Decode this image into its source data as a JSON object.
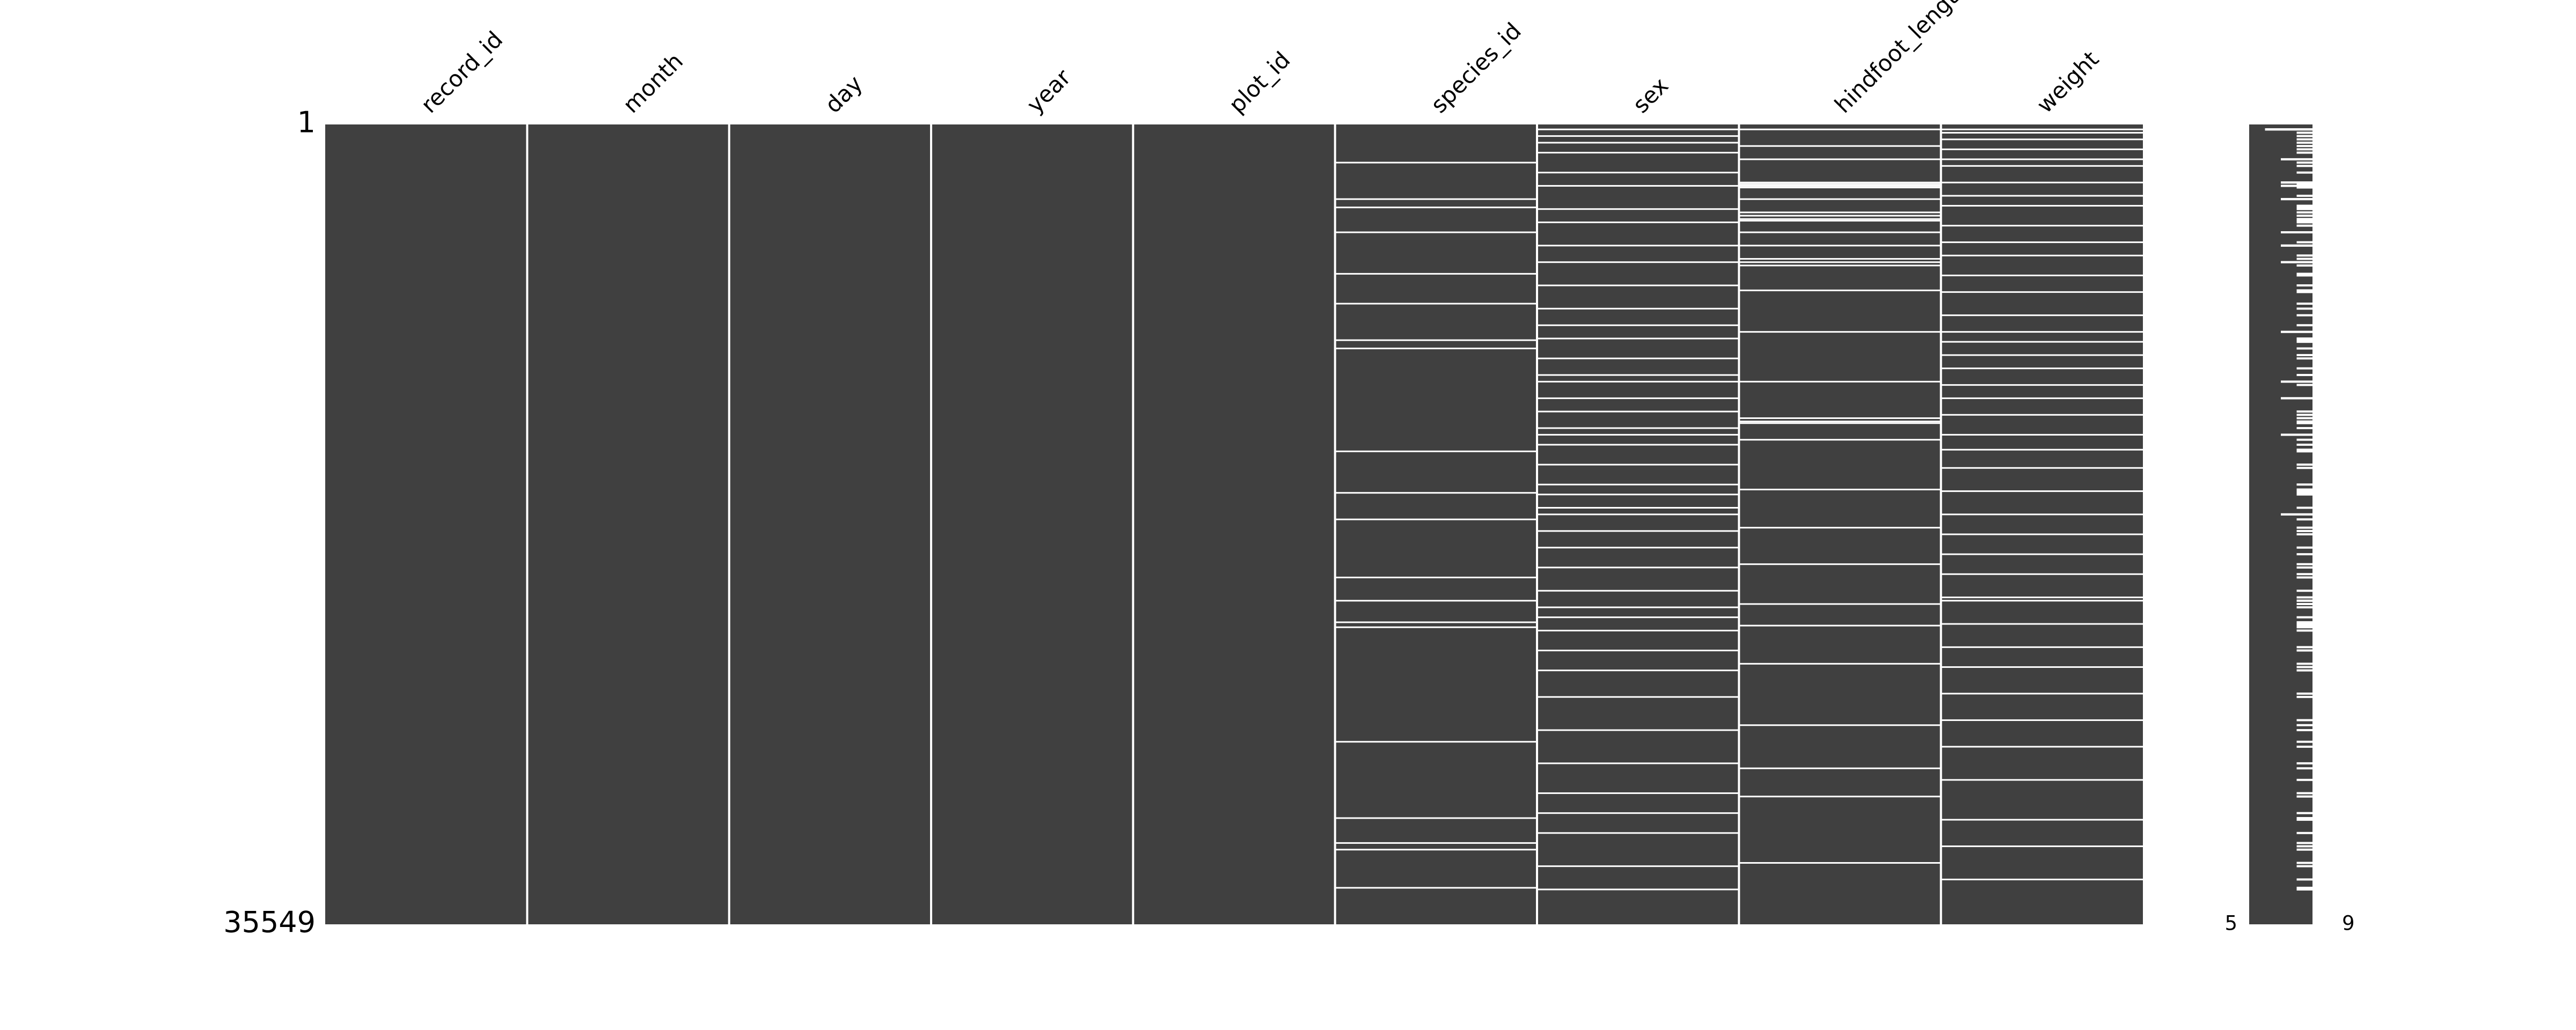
{
  "chart_data": {
    "type": "nullity-matrix",
    "color": "#404040",
    "ylim": [
      1,
      35549
    ],
    "yticks": [
      1,
      35549
    ],
    "completeness_lim": [
      5,
      9
    ],
    "series": [
      {
        "name": "record_id",
        "missing_rows": []
      },
      {
        "name": "month",
        "missing_rows": []
      },
      {
        "name": "day",
        "missing_rows": []
      },
      {
        "name": "year",
        "missing_rows": []
      },
      {
        "name": "plot_id",
        "missing_rows": []
      },
      {
        "name": "species_id",
        "missing_rows": [
          1696,
          3319,
          3688,
          4794,
          6638,
          7965,
          9588,
          9956,
          14529,
          16373,
          17553,
          20134,
          21167,
          22125,
          22346,
          27436,
          30828,
          31935,
          32229,
          33926
        ]
      },
      {
        "name": "sex",
        "missing_rows": [
          221,
          516,
          811,
          1254,
          2139,
          2729,
          3761,
          4351,
          5384,
          6121,
          7154,
          8186,
          8924,
          9514,
          10399,
          11136,
          11431,
          12169,
          12759,
          13496,
          13791,
          14234,
          15119,
          16004,
          16446,
          17036,
          17331,
          18069,
          18806,
          19691,
          20724,
          21461,
          21904,
          22494,
          23379,
          24264,
          25444,
          26919,
          28394,
          29721,
          30606,
          31491,
          32966,
          33999
        ]
      },
      {
        "name": "hindfoot_length",
        "missing_rows": [
          221,
          959,
          1549,
          2581,
          2655,
          2729,
          2803,
          3319,
          3909,
          4056,
          4204,
          4278,
          4794,
          5384,
          5974,
          6121,
          6269,
          7375,
          9219,
          11431,
          13054,
          13201,
          13275,
          14013,
          16225,
          17921,
          19544,
          21314,
          22273,
          23969,
          26698,
          28616,
          29869,
          32819
        ]
      },
      {
        "name": "weight",
        "missing_rows": [
          221,
          369,
          664,
          1106,
          1549,
          1844,
          2581,
          3171,
          3614,
          4499,
          5236,
          5826,
          6711,
          7449,
          8481,
          9219,
          9661,
          10251,
          10841,
          11579,
          12169,
          12906,
          13791,
          14455,
          15266,
          16299,
          17331,
          18216,
          19101,
          19986,
          21019,
          21166,
          22199,
          23231,
          24116,
          25296,
          26476,
          27656,
          29131,
          30901,
          32081,
          33556
        ]
      }
    ]
  }
}
